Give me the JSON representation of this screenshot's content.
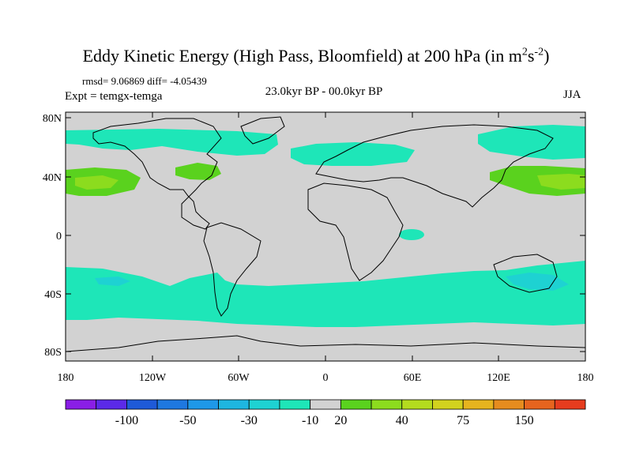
{
  "figure": {
    "title_main": "Eddy Kinetic Energy (High Pass, Bloomfield) at 200 hPa (in m",
    "title_sup1": "2",
    "title_mid": "s",
    "title_sup2": "-2",
    "title_end": ")",
    "stats": "rmsd= 9.06869 diff= -4.05439",
    "expt": "Expt = temgx-temga",
    "period": "23.0kyr BP - 00.0kyr BP",
    "season": "JJA"
  },
  "axes": {
    "lat_ticks": [
      "80N",
      "40N",
      "0",
      "40S",
      "80S"
    ],
    "lon_ticks": [
      "180",
      "120W",
      "60W",
      "0",
      "60E",
      "120E",
      "180"
    ]
  },
  "colorbar": {
    "colors": [
      "#8a1ee6",
      "#5b2ae8",
      "#1e5ad8",
      "#1e78e0",
      "#1e98e8",
      "#1eb6e0",
      "#1ed2d2",
      "#1ee6b8",
      "#d2d2d2",
      "#5ad21e",
      "#8cdc1e",
      "#b4dc1e",
      "#d2d21e",
      "#e6b41e",
      "#e68c1e",
      "#e6641e",
      "#e63c1e"
    ],
    "labels": [
      "-100",
      "-50",
      "-30",
      "-10",
      "20",
      "40",
      "75",
      "150"
    ]
  },
  "colors": {
    "land_ocean_background": "#d2d2d2",
    "negative_contour": "#1ee6b8",
    "negative_strong": "#1ed2d2",
    "positive_contour": "#5ad21e",
    "positive_strong": "#8cdc1e"
  }
}
